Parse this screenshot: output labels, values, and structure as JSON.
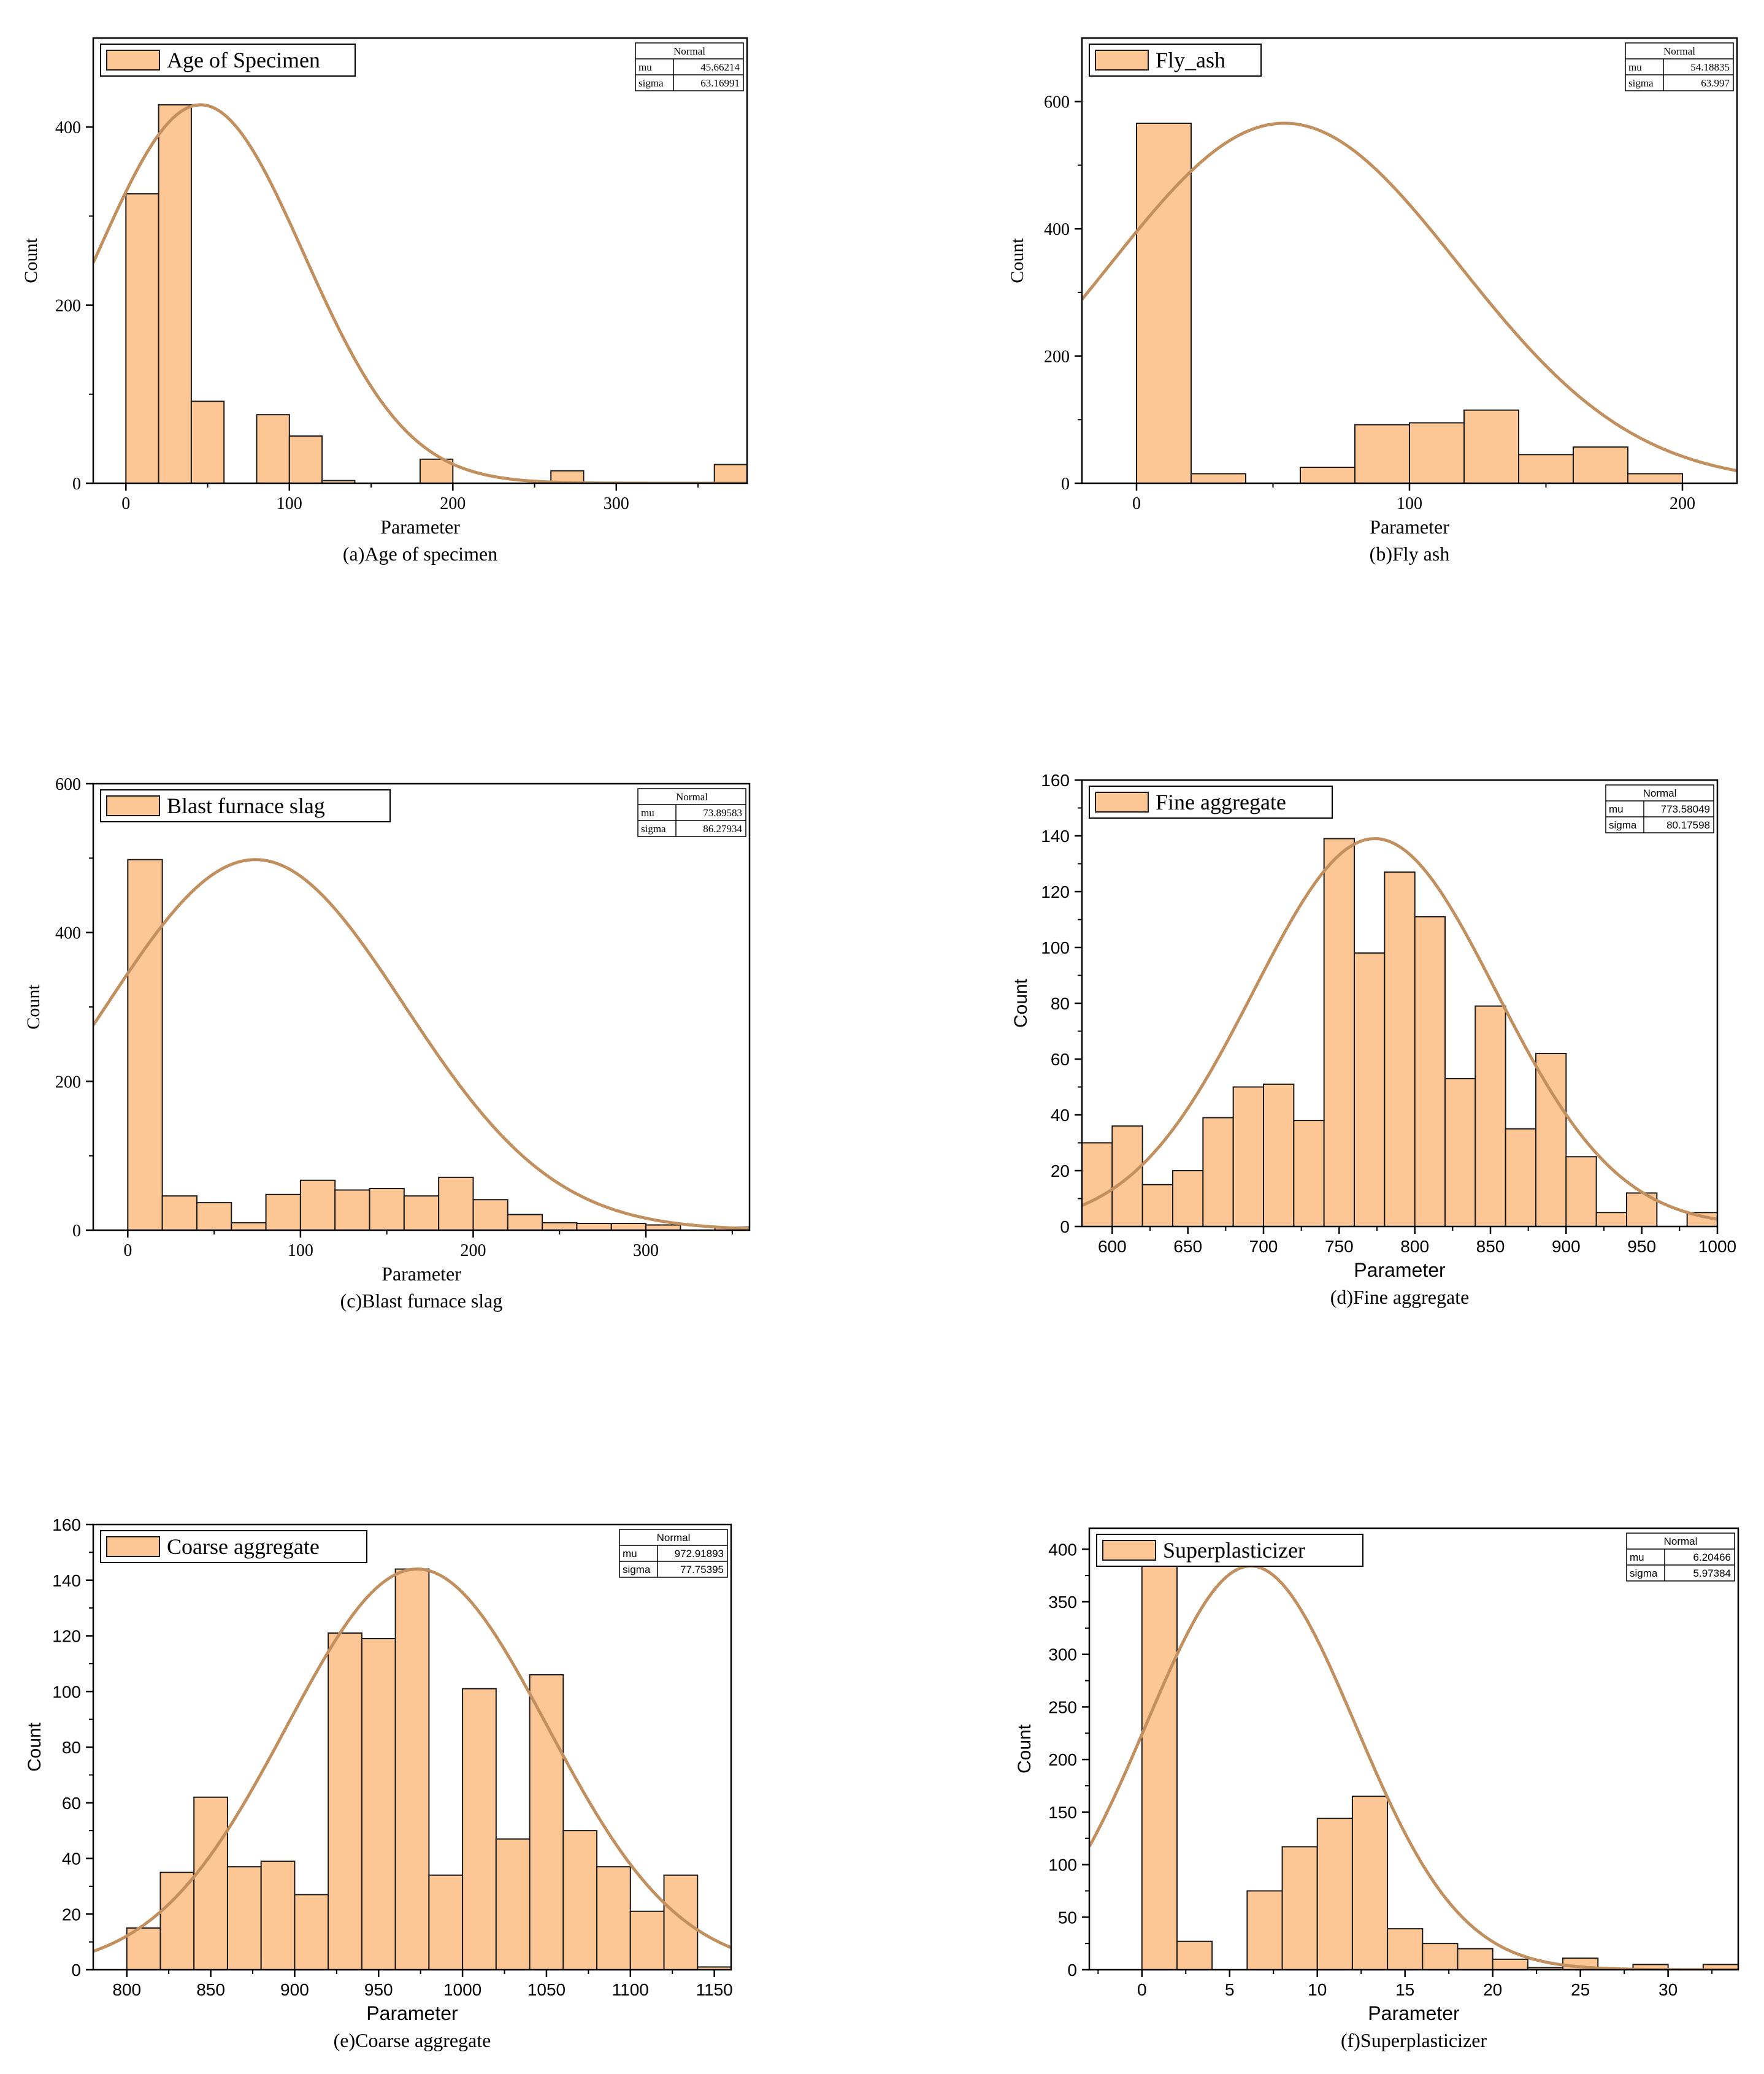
{
  "colors": {
    "bar_fill": "#fdc795",
    "bar_stroke": "#1a1a1a",
    "curve": "#c28f5e",
    "axis": "#000000"
  },
  "chart_data": [
    {
      "id": "a",
      "type": "bar",
      "legend_label": "Age of Specimen",
      "caption": "(a)Age of specimen",
      "xlabel": "Parameter",
      "ylabel": "Count",
      "xlim": [
        -20,
        380
      ],
      "ylim": [
        0,
        500
      ],
      "x_ticks": [
        "0",
        "100",
        "200",
        "300"
      ],
      "x_tick_values": [
        0,
        100,
        200,
        300
      ],
      "y_ticks": [
        "0",
        "200",
        "400"
      ],
      "y_tick_values": [
        0,
        200,
        400
      ],
      "bin_edges": [
        0,
        20,
        40,
        60,
        80,
        100,
        120,
        140,
        160,
        180,
        200,
        220,
        240,
        260,
        280,
        300,
        320,
        340,
        360,
        380
      ],
      "counts": [
        325,
        425,
        92,
        0,
        77,
        53,
        3,
        0,
        0,
        27,
        0,
        0,
        0,
        14,
        0,
        0,
        0,
        0,
        21
      ],
      "stats": {
        "title": "Normal",
        "mu_label": "mu",
        "mu": "45.66214",
        "sigma_label": "sigma",
        "sigma": "63.16991"
      },
      "fit": {
        "mu": 45.66214,
        "sigma": 63.16991,
        "peak": 425
      }
    },
    {
      "id": "b",
      "type": "bar",
      "legend_label": "Fly_ash",
      "caption": "(b)Fly ash",
      "xlabel": "Parameter",
      "ylabel": "Count",
      "xlim": [
        -20,
        220
      ],
      "ylim": [
        0,
        700
      ],
      "x_ticks": [
        "0",
        "100",
        "200"
      ],
      "x_tick_values": [
        0,
        100,
        200
      ],
      "y_ticks": [
        "0",
        "200",
        "400",
        "600"
      ],
      "y_tick_values": [
        0,
        200,
        400,
        600
      ],
      "bin_edges": [
        0,
        20,
        40,
        60,
        80,
        100,
        120,
        140,
        160,
        180,
        200
      ],
      "counts": [
        566,
        15,
        0,
        25,
        92,
        95,
        115,
        45,
        57,
        15
      ],
      "stats": {
        "title": "Normal",
        "mu_label": "mu",
        "mu": "54.18835",
        "sigma_label": "sigma",
        "sigma": "63.997"
      },
      "fit": {
        "mu": 54.18835,
        "sigma": 63.997,
        "peak": 566
      }
    },
    {
      "id": "c",
      "type": "bar",
      "legend_label": "Blast furnace slag",
      "caption": "(c)Blast furnace slag",
      "xlabel": "Parameter",
      "ylabel": "Count",
      "xlim": [
        -20,
        360
      ],
      "ylim": [
        0,
        600
      ],
      "x_ticks": [
        "0",
        "100",
        "200",
        "300"
      ],
      "x_tick_values": [
        0,
        100,
        200,
        300
      ],
      "y_ticks": [
        "0",
        "200",
        "400",
        "600"
      ],
      "y_tick_values": [
        0,
        200,
        400,
        600
      ],
      "bin_edges": [
        0,
        20,
        40,
        60,
        80,
        100,
        120,
        140,
        160,
        180,
        200,
        220,
        240,
        260,
        280,
        300,
        320,
        340,
        360
      ],
      "counts": [
        498,
        46,
        37,
        10,
        48,
        67,
        54,
        56,
        46,
        71,
        41,
        21,
        10,
        9,
        9,
        7,
        0,
        4
      ],
      "stats": {
        "title": "Normal",
        "mu_label": "mu",
        "mu": "73.89583",
        "sigma_label": "sigma",
        "sigma": "86.27934"
      },
      "fit": {
        "mu": 73.89583,
        "sigma": 86.27934,
        "peak": 498
      }
    },
    {
      "id": "d",
      "type": "bar",
      "legend_label": "Fine aggregate",
      "caption": "(d)Fine aggregate",
      "xlabel": "Parameter",
      "ylabel": "Count",
      "xlim": [
        580,
        1000
      ],
      "ylim": [
        0,
        160
      ],
      "x_ticks": [
        "600",
        "650",
        "700",
        "750",
        "800",
        "850",
        "900",
        "950",
        "1000"
      ],
      "x_tick_values": [
        600,
        650,
        700,
        750,
        800,
        850,
        900,
        950,
        1000
      ],
      "y_ticks": [
        "0",
        "20",
        "40",
        "60",
        "80",
        "100",
        "120",
        "140",
        "160"
      ],
      "y_tick_values": [
        0,
        20,
        40,
        60,
        80,
        100,
        120,
        140,
        160
      ],
      "bin_edges": [
        580,
        600,
        620,
        640,
        660,
        680,
        700,
        720,
        740,
        760,
        780,
        800,
        820,
        840,
        860,
        880,
        900,
        920,
        940,
        960,
        980,
        1000
      ],
      "counts": [
        30,
        36,
        15,
        20,
        39,
        50,
        51,
        38,
        139,
        98,
        127,
        111,
        53,
        79,
        35,
        62,
        25,
        5,
        12,
        0,
        5
      ],
      "stats": {
        "title": "Normal",
        "mu_label": "mu",
        "mu": "773.58049",
        "sigma_label": "sigma",
        "sigma": "80.17598"
      },
      "fit": {
        "mu": 773.58049,
        "sigma": 80.17598,
        "peak": 139
      }
    },
    {
      "id": "e",
      "type": "bar",
      "legend_label": "Coarse aggregate",
      "caption": "(e)Coarse aggregate",
      "xlabel": "Parameter",
      "ylabel": "Count",
      "xlim": [
        780,
        1160
      ],
      "ylim": [
        0,
        160
      ],
      "x_ticks": [
        "800",
        "850",
        "900",
        "950",
        "1000",
        "1050",
        "1100",
        "1150"
      ],
      "x_tick_values": [
        800,
        850,
        900,
        950,
        1000,
        1050,
        1100,
        1150
      ],
      "y_ticks": [
        "0",
        "20",
        "40",
        "60",
        "80",
        "100",
        "120",
        "140",
        "160"
      ],
      "y_tick_values": [
        0,
        20,
        40,
        60,
        80,
        100,
        120,
        140,
        160
      ],
      "bin_edges": [
        800,
        820,
        840,
        860,
        880,
        900,
        920,
        940,
        960,
        980,
        1000,
        1020,
        1040,
        1060,
        1080,
        1100,
        1120,
        1140,
        1160
      ],
      "counts": [
        15,
        35,
        62,
        37,
        39,
        27,
        121,
        119,
        144,
        34,
        101,
        47,
        106,
        50,
        37,
        21,
        34,
        1
      ],
      "stats": {
        "title": "Normal",
        "mu_label": "mu",
        "mu": "972.91893",
        "sigma_label": "sigma",
        "sigma": "77.75395"
      },
      "fit": {
        "mu": 972.91893,
        "sigma": 77.75395,
        "peak": 144
      }
    },
    {
      "id": "f",
      "type": "bar",
      "legend_label": "Superplasticizer",
      "caption": "(f)Superplasticizer",
      "xlabel": "Parameter",
      "ylabel": "Count",
      "xlim": [
        -3,
        34
      ],
      "ylim": [
        0,
        420
      ],
      "x_ticks": [
        "0",
        "5",
        "10",
        "15",
        "20",
        "25",
        "30"
      ],
      "x_tick_values": [
        0,
        5,
        10,
        15,
        20,
        25,
        30
      ],
      "y_ticks": [
        "0",
        "50",
        "100",
        "150",
        "200",
        "250",
        "300",
        "350",
        "400"
      ],
      "y_tick_values": [
        0,
        50,
        100,
        150,
        200,
        250,
        300,
        350,
        400
      ],
      "bin_edges": [
        0,
        2,
        4,
        6,
        8,
        10,
        12,
        14,
        16,
        18,
        20,
        22,
        24,
        26,
        28,
        30,
        32,
        34
      ],
      "counts": [
        384,
        27,
        0,
        75,
        117,
        144,
        165,
        39,
        25,
        20,
        10,
        2,
        11,
        0,
        5,
        0,
        5
      ],
      "stats": {
        "title": "Normal",
        "mu_label": "mu",
        "mu": "6.20466",
        "sigma_label": "sigma",
        "sigma": "5.97384"
      },
      "fit": {
        "mu": 6.20466,
        "sigma": 5.97384,
        "peak": 384
      }
    }
  ]
}
